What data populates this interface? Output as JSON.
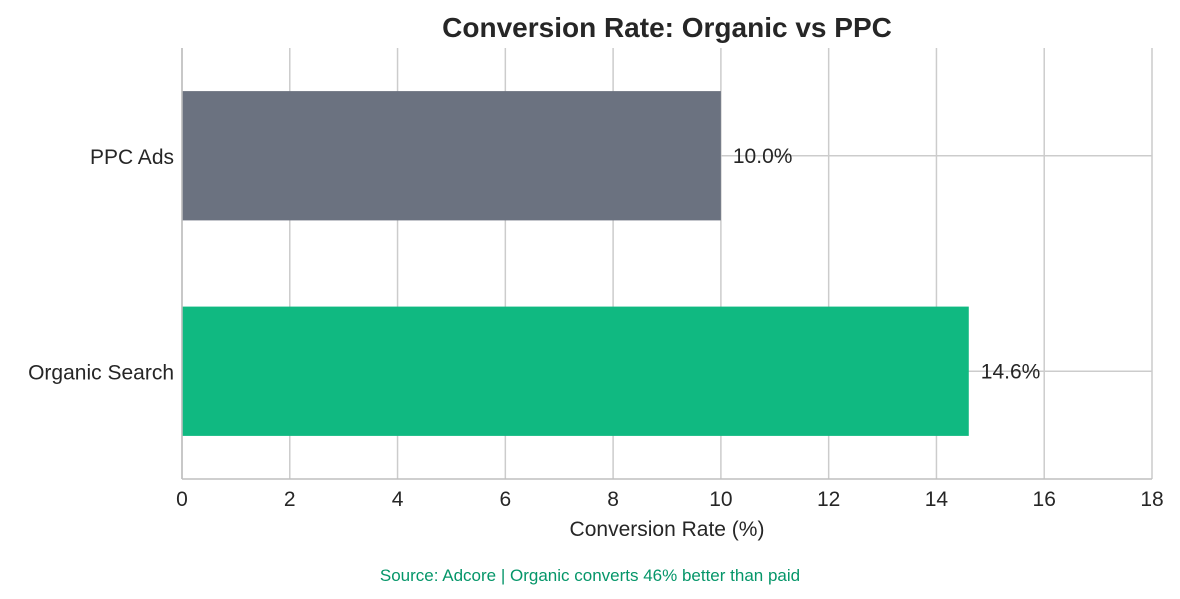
{
  "chart_data": {
    "type": "bar",
    "orientation": "horizontal",
    "title": "Conversion Rate: Organic vs PPC",
    "xlabel": "Conversion Rate (%)",
    "ylabel": "",
    "xlim": [
      0,
      18
    ],
    "xticks": [
      0,
      2,
      4,
      6,
      8,
      10,
      12,
      14,
      16,
      18
    ],
    "grid": true,
    "categories": [
      "PPC Ads",
      "Organic Search"
    ],
    "values": [
      10.0,
      14.6
    ],
    "value_labels": [
      "10.0%",
      "14.6%"
    ],
    "colors": [
      "#6b7280",
      "#10b981"
    ],
    "annotation": "Source: Adcore | Organic converts 46% better than paid",
    "annotation_color": "#059669",
    "grid_color": "#cccccc",
    "axis_color": "#bfbfbf"
  }
}
